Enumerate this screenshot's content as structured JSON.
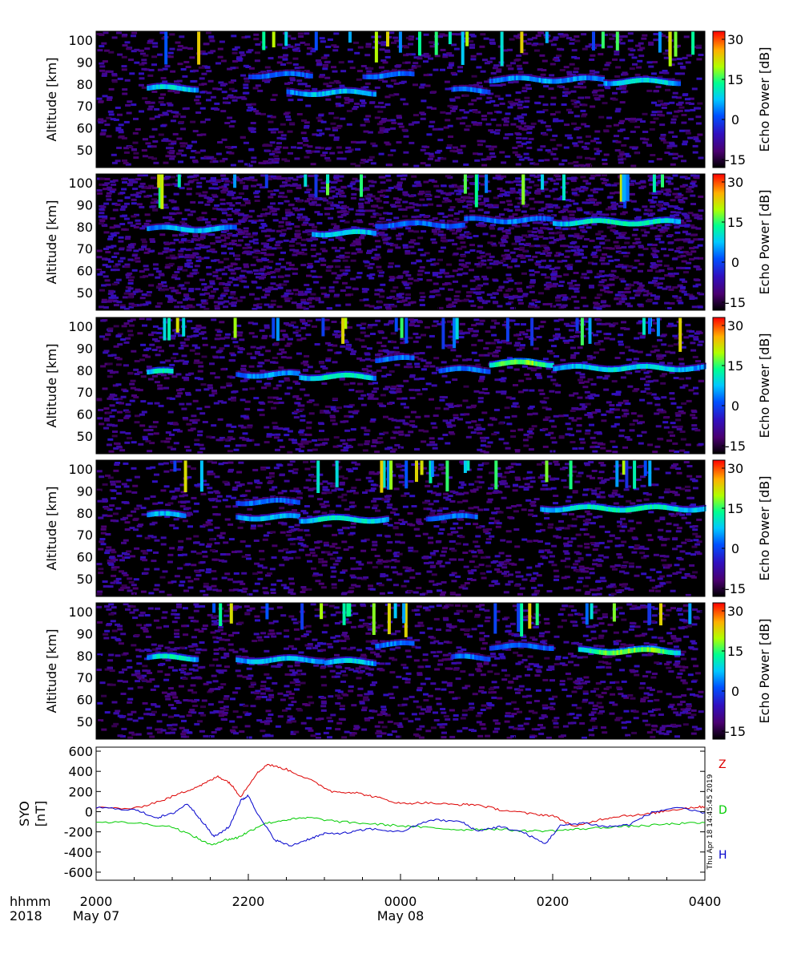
{
  "chart_data": [
    {
      "type": "heatmap",
      "panel": 1,
      "ylabel": "Altitude [km]",
      "yticks": [
        50,
        60,
        70,
        80,
        90,
        100
      ],
      "ylim": [
        42,
        104
      ],
      "xlim_hours": [
        20,
        28
      ],
      "colorbar": {
        "label": "Echo Power [dB]",
        "range": [
          -18,
          33
        ],
        "ticks": [
          30,
          15,
          0,
          -15
        ]
      },
      "echo_layers": [
        {
          "start": "20:40",
          "end": "21:20",
          "altitude_km": 78,
          "peak_db": 12
        },
        {
          "start": "22:00",
          "end": "22:50",
          "altitude_km": 84,
          "peak_db": 5
        },
        {
          "start": "22:30",
          "end": "23:40",
          "altitude_km": 76,
          "peak_db": 10
        },
        {
          "start": "23:30",
          "end": "00:10",
          "altitude_km": 84,
          "peak_db": 6
        },
        {
          "start": "00:40",
          "end": "01:10",
          "altitude_km": 77,
          "peak_db": 6
        },
        {
          "start": "01:10",
          "end": "02:40",
          "altitude_km": 82,
          "peak_db": 8
        },
        {
          "start": "02:40",
          "end": "03:40",
          "altitude_km": 81,
          "peak_db": 12
        }
      ]
    },
    {
      "type": "heatmap",
      "panel": 2,
      "ylabel": "Altitude [km]",
      "yticks": [
        50,
        60,
        70,
        80,
        90,
        100
      ],
      "ylim": [
        42,
        104
      ],
      "xlim_hours": [
        20,
        28
      ],
      "colorbar": {
        "label": "Echo Power [dB]",
        "range": [
          -18,
          33
        ],
        "ticks": [
          30,
          15,
          0,
          -15
        ]
      },
      "echo_layers": [
        {
          "start": "20:40",
          "end": "21:50",
          "altitude_km": 79,
          "peak_db": 10
        },
        {
          "start": "22:50",
          "end": "23:40",
          "altitude_km": 77,
          "peak_db": 12
        },
        {
          "start": "23:40",
          "end": "00:50",
          "altitude_km": 81,
          "peak_db": 5
        },
        {
          "start": "00:50",
          "end": "02:00",
          "altitude_km": 83,
          "peak_db": 6
        },
        {
          "start": "02:00",
          "end": "03:40",
          "altitude_km": 82,
          "peak_db": 15
        }
      ]
    },
    {
      "type": "heatmap",
      "panel": 3,
      "ylabel": "Altitude [km]",
      "yticks": [
        50,
        60,
        70,
        80,
        90,
        100
      ],
      "ylim": [
        42,
        104
      ],
      "xlim_hours": [
        20,
        28
      ],
      "colorbar": {
        "label": "Echo Power [dB]",
        "range": [
          -18,
          33
        ],
        "ticks": [
          30,
          15,
          0,
          -15
        ]
      },
      "echo_layers": [
        {
          "start": "20:40",
          "end": "21:00",
          "altitude_km": 79,
          "peak_db": 15
        },
        {
          "start": "21:50",
          "end": "22:40",
          "altitude_km": 78,
          "peak_db": 8
        },
        {
          "start": "22:40",
          "end": "23:40",
          "altitude_km": 77,
          "peak_db": 14
        },
        {
          "start": "23:40",
          "end": "00:10",
          "altitude_km": 85,
          "peak_db": 6
        },
        {
          "start": "00:30",
          "end": "01:10",
          "altitude_km": 80,
          "peak_db": 6
        },
        {
          "start": "01:10",
          "end": "02:00",
          "altitude_km": 83,
          "peak_db": 20
        },
        {
          "start": "02:00",
          "end": "04:00",
          "altitude_km": 81,
          "peak_db": 12
        }
      ]
    },
    {
      "type": "heatmap",
      "panel": 4,
      "ylabel": "Altitude [km]",
      "yticks": [
        50,
        60,
        70,
        80,
        90,
        100
      ],
      "ylim": [
        42,
        104
      ],
      "xlim_hours": [
        20,
        28
      ],
      "colorbar": {
        "label": "Echo Power [dB]",
        "range": [
          -18,
          33
        ],
        "ticks": [
          30,
          15,
          0,
          -15
        ]
      },
      "echo_layers": [
        {
          "start": "20:40",
          "end": "21:10",
          "altitude_km": 79,
          "peak_db": 10
        },
        {
          "start": "21:50",
          "end": "22:40",
          "altitude_km": 78,
          "peak_db": 10
        },
        {
          "start": "21:50",
          "end": "22:40",
          "altitude_km": 85,
          "peak_db": 5
        },
        {
          "start": "22:40",
          "end": "23:50",
          "altitude_km": 77,
          "peak_db": 14
        },
        {
          "start": "00:20",
          "end": "01:00",
          "altitude_km": 78,
          "peak_db": 6
        },
        {
          "start": "01:50",
          "end": "04:00",
          "altitude_km": 82,
          "peak_db": 14
        }
      ]
    },
    {
      "type": "heatmap",
      "panel": 5,
      "ylabel": "Altitude [km]",
      "yticks": [
        50,
        60,
        70,
        80,
        90,
        100
      ],
      "ylim": [
        42,
        104
      ],
      "xlim_hours": [
        20,
        28
      ],
      "colorbar": {
        "label": "Echo Power [dB]",
        "range": [
          -18,
          33
        ],
        "ticks": [
          30,
          15,
          0,
          -15
        ]
      },
      "echo_layers": [
        {
          "start": "20:40",
          "end": "21:20",
          "altitude_km": 79,
          "peak_db": 14
        },
        {
          "start": "21:50",
          "end": "23:00",
          "altitude_km": 78,
          "peak_db": 10
        },
        {
          "start": "23:00",
          "end": "23:40",
          "altitude_km": 77,
          "peak_db": 12
        },
        {
          "start": "23:40",
          "end": "00:10",
          "altitude_km": 85,
          "peak_db": 6
        },
        {
          "start": "00:40",
          "end": "01:10",
          "altitude_km": 79,
          "peak_db": 6
        },
        {
          "start": "01:10",
          "end": "02:00",
          "altitude_km": 84,
          "peak_db": 5
        },
        {
          "start": "02:20",
          "end": "03:40",
          "altitude_km": 82,
          "peak_db": 20
        }
      ]
    },
    {
      "type": "line",
      "panel": 6,
      "ylabel_line1": "SYO",
      "ylabel_line2": "[nT]",
      "ylim": [
        -680,
        640
      ],
      "yticks": [
        600,
        400,
        200,
        0,
        -200,
        -400,
        -600
      ],
      "xlim_hours": [
        20,
        28
      ],
      "timestamp": "Thu Apr 18 14:45:45 2019",
      "series": [
        {
          "name": "Z",
          "color": "#dd0000",
          "x": [
            20.0,
            20.5,
            20.9,
            21.2,
            21.4,
            21.6,
            21.75,
            21.9,
            22.1,
            22.25,
            22.5,
            22.8,
            23.1,
            23.4,
            23.7,
            24.0,
            24.3,
            24.7,
            25.0,
            25.3,
            25.7,
            26.0,
            26.3,
            26.6,
            26.9,
            27.2,
            27.5,
            27.8,
            28.0
          ],
          "y": [
            40,
            30,
            120,
            210,
            270,
            350,
            290,
            150,
            370,
            470,
            420,
            320,
            200,
            190,
            140,
            80,
            90,
            70,
            70,
            20,
            -20,
            -40,
            -150,
            -80,
            -40,
            -30,
            10,
            40,
            50
          ]
        },
        {
          "name": "D",
          "color": "#00cc00",
          "x": [
            20.0,
            20.5,
            21.0,
            21.3,
            21.5,
            21.7,
            21.85,
            22.0,
            22.2,
            22.5,
            22.8,
            23.2,
            23.6,
            24.0,
            24.4,
            24.8,
            25.2,
            25.6,
            26.0,
            26.4,
            26.8,
            27.2,
            27.6,
            28.0
          ],
          "y": [
            -100,
            -110,
            -150,
            -250,
            -330,
            -280,
            -260,
            -200,
            -120,
            -80,
            -60,
            -100,
            -120,
            -140,
            -160,
            -180,
            -170,
            -190,
            -190,
            -170,
            -150,
            -140,
            -120,
            -110
          ]
        },
        {
          "name": "H",
          "color": "#0000cc",
          "x": [
            20.0,
            20.5,
            20.8,
            21.0,
            21.2,
            21.4,
            21.55,
            21.75,
            21.9,
            22.0,
            22.15,
            22.35,
            22.55,
            22.8,
            23.0,
            23.3,
            23.6,
            24.0,
            24.4,
            24.8,
            25.0,
            25.3,
            25.6,
            25.9,
            26.1,
            26.4,
            26.7,
            27.0,
            27.3,
            27.6,
            28.0
          ],
          "y": [
            40,
            20,
            -60,
            -20,
            80,
            -100,
            -250,
            -150,
            110,
            160,
            -60,
            -280,
            -340,
            -270,
            -220,
            -210,
            -170,
            -200,
            -80,
            -100,
            -190,
            -150,
            -200,
            -320,
            -140,
            -110,
            -150,
            -130,
            -10,
            40,
            -10
          ]
        }
      ]
    }
  ],
  "x_axis": {
    "row1_label": "hhmm",
    "row2_label": "2018",
    "ticks": [
      {
        "hour": 20,
        "label": "2000",
        "date": "May 07"
      },
      {
        "hour": 22,
        "label": "2200",
        "date": ""
      },
      {
        "hour": 24,
        "label": "0000",
        "date": "May 08"
      },
      {
        "hour": 26,
        "label": "0200",
        "date": ""
      },
      {
        "hour": 28,
        "label": "0400",
        "date": ""
      }
    ]
  }
}
